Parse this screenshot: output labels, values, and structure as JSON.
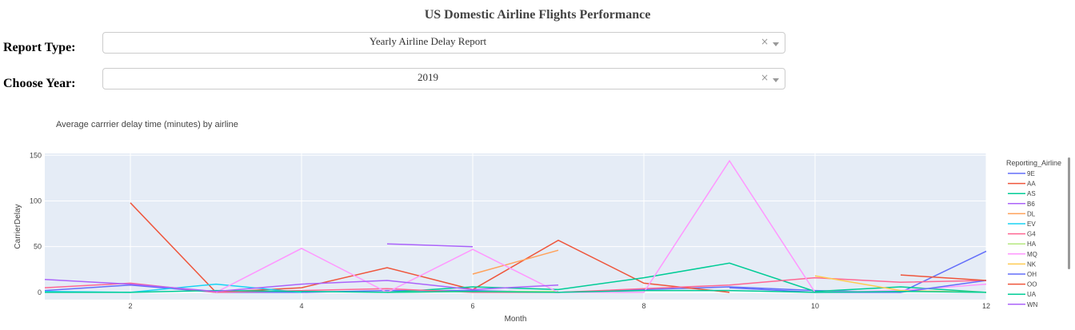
{
  "header": {
    "title": "US Domestic Airline Flights Performance"
  },
  "controls": {
    "report_type": {
      "label": "Report Type:",
      "value": "Yearly Airline Delay Report",
      "clear": "×"
    },
    "year": {
      "label": "Choose Year:",
      "value": "2019",
      "clear": "×"
    }
  },
  "chart_data": {
    "type": "line",
    "title": "Average carrrier delay time (minutes) by airline",
    "xlabel": "Month",
    "ylabel": "CarrierDelay",
    "xlim": [
      1,
      12
    ],
    "ylim": [
      -8,
      152
    ],
    "x_ticks": [
      2,
      4,
      6,
      8,
      10,
      12
    ],
    "y_ticks": [
      0,
      50,
      100,
      150
    ],
    "legend_title": "Reporting_Airline",
    "legend_position": "right",
    "grid": true,
    "series": [
      {
        "name": "9E",
        "color": "#636efa",
        "points": [
          [
            1,
            2
          ],
          [
            2,
            8
          ],
          [
            3,
            0
          ],
          [
            4,
            0
          ],
          [
            5,
            2
          ],
          [
            6,
            2
          ],
          [
            7,
            0
          ],
          [
            8,
            3
          ],
          [
            9,
            6
          ],
          [
            10,
            2
          ],
          [
            11,
            0
          ],
          [
            12,
            45
          ]
        ]
      },
      {
        "name": "AA",
        "color": "#EF553B",
        "points": [
          [
            2,
            98
          ],
          [
            3,
            0
          ],
          [
            4,
            5
          ],
          [
            5,
            27
          ],
          [
            6,
            3
          ],
          [
            7,
            57
          ],
          [
            8,
            10
          ],
          [
            9,
            0
          ]
        ]
      },
      {
        "name": "AS",
        "color": "#00cc96",
        "points": [
          [
            5,
            0
          ],
          [
            6,
            6
          ],
          [
            7,
            3
          ],
          [
            8,
            16
          ],
          [
            9,
            32
          ],
          [
            10,
            1
          ],
          [
            11,
            6
          ],
          [
            12,
            0
          ]
        ]
      },
      {
        "name": "B6",
        "color": "#ab63fa",
        "points": [
          [
            5,
            53
          ],
          [
            6,
            50
          ]
        ]
      },
      {
        "name": "DL",
        "color": "#FFA15A",
        "points": [
          [
            6,
            20
          ],
          [
            7,
            46
          ]
        ]
      },
      {
        "name": "EV",
        "color": "#19d3f3",
        "points": [
          [
            1,
            1
          ],
          [
            2,
            0
          ],
          [
            3,
            9
          ],
          [
            4,
            0
          ]
        ]
      },
      {
        "name": "G4",
        "color": "#FF6692",
        "points": [
          [
            1,
            5
          ],
          [
            2,
            10
          ],
          [
            3,
            0
          ],
          [
            4,
            2
          ],
          [
            5,
            4
          ],
          [
            6,
            0
          ],
          [
            7,
            0
          ],
          [
            8,
            4
          ],
          [
            9,
            8
          ],
          [
            10,
            16
          ],
          [
            11,
            11
          ],
          [
            12,
            13
          ]
        ]
      },
      {
        "name": "HA",
        "color": "#B6E880",
        "points": [
          [
            5,
            0
          ],
          [
            6,
            1
          ],
          [
            7,
            1
          ]
        ]
      },
      {
        "name": "MQ",
        "color": "#FF97FF",
        "points": [
          [
            3,
            0
          ],
          [
            4,
            48
          ],
          [
            5,
            0
          ],
          [
            6,
            47
          ],
          [
            7,
            0
          ],
          [
            8,
            0
          ],
          [
            9,
            144
          ],
          [
            10,
            0
          ],
          [
            11,
            2
          ],
          [
            12,
            9
          ]
        ]
      },
      {
        "name": "NK",
        "color": "#FECB52",
        "points": [
          [
            10,
            18
          ],
          [
            11,
            2
          ],
          [
            12,
            0
          ]
        ]
      },
      {
        "name": "OH",
        "color": "#636efa",
        "points": [
          [
            9,
            5
          ],
          [
            10,
            0
          ],
          [
            11,
            0
          ],
          [
            12,
            13
          ]
        ]
      },
      {
        "name": "OO",
        "color": "#EF553B",
        "points": [
          [
            11,
            19
          ],
          [
            12,
            13
          ]
        ]
      },
      {
        "name": "UA",
        "color": "#00cc96",
        "points": [
          [
            1,
            0
          ],
          [
            2,
            0
          ],
          [
            3,
            2
          ],
          [
            4,
            1
          ],
          [
            5,
            0
          ],
          [
            6,
            1
          ],
          [
            7,
            0
          ],
          [
            8,
            2
          ],
          [
            9,
            2
          ],
          [
            10,
            0
          ],
          [
            11,
            1
          ],
          [
            12,
            0
          ]
        ]
      },
      {
        "name": "WN",
        "color": "#ab63fa",
        "points": [
          [
            1,
            14
          ],
          [
            2,
            9
          ],
          [
            3,
            1
          ],
          [
            4,
            9
          ],
          [
            5,
            13
          ],
          [
            6,
            3
          ],
          [
            7,
            8
          ]
        ]
      }
    ]
  }
}
